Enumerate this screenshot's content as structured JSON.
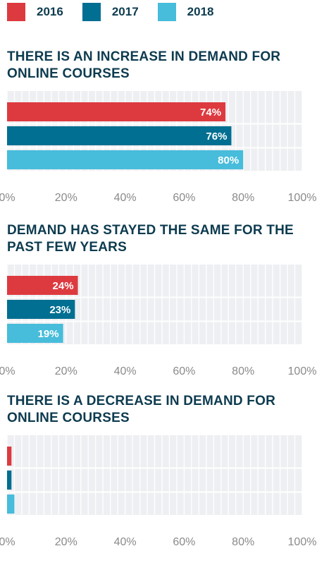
{
  "colors": {
    "2016": "#dd3a3f",
    "2017": "#006f91",
    "2018": "#47bcdb",
    "title": "#0d3b4f",
    "track": "#eeeff2"
  },
  "legend": [
    {
      "label": "2016",
      "color": "#dd3a3f"
    },
    {
      "label": "2017",
      "color": "#006f91"
    },
    {
      "label": "2018",
      "color": "#47bcdb"
    }
  ],
  "chart_data": [
    {
      "type": "bar",
      "orientation": "horizontal",
      "title": "THERE IS AN INCREASE IN DEMAND FOR ONLINE COURSES",
      "series": [
        {
          "name": "2016",
          "value": 74,
          "label": "74%"
        },
        {
          "name": "2017",
          "value": 76,
          "label": "76%"
        },
        {
          "name": "2018",
          "value": 80,
          "label": "80%"
        }
      ],
      "xlim": [
        0,
        100
      ],
      "ticks": [
        "0%",
        "20%",
        "40%",
        "60%",
        "80%",
        "100%"
      ],
      "grid": true
    },
    {
      "type": "bar",
      "orientation": "horizontal",
      "title": "DEMAND HAS STAYED THE SAME FOR THE PAST FEW YEARS",
      "series": [
        {
          "name": "2016",
          "value": 24,
          "label": "24%"
        },
        {
          "name": "2017",
          "value": 23,
          "label": "23%"
        },
        {
          "name": "2018",
          "value": 19,
          "label": "19%"
        }
      ],
      "xlim": [
        0,
        100
      ],
      "ticks": [
        "0%",
        "20%",
        "40%",
        "60%",
        "80%",
        "100%"
      ],
      "grid": true
    },
    {
      "type": "bar",
      "orientation": "horizontal",
      "title": "THERE IS A DECREASE IN DEMAND FOR ONLINE COURSES",
      "series": [
        {
          "name": "2016",
          "value": 1.5,
          "label": ""
        },
        {
          "name": "2017",
          "value": 1.5,
          "label": ""
        },
        {
          "name": "2018",
          "value": 2.5,
          "label": ""
        }
      ],
      "xlim": [
        0,
        100
      ],
      "ticks": [
        "0%",
        "20%",
        "40%",
        "60%",
        "80%",
        "100%"
      ],
      "grid": true
    }
  ]
}
